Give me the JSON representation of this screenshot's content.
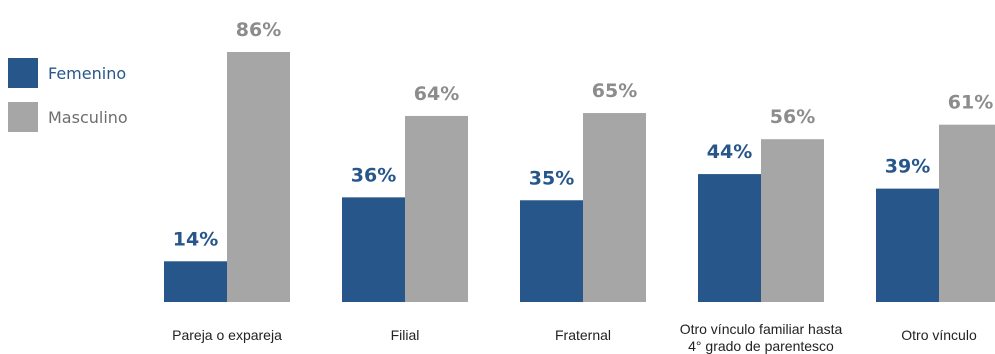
{
  "chart_data": {
    "type": "bar",
    "title": "",
    "xlabel": "",
    "ylabel": "",
    "ylim": [
      0,
      100
    ],
    "grid": false,
    "legend_position": "top-left",
    "categories": [
      [
        "Pareja o expareja"
      ],
      [
        "Filial"
      ],
      [
        "Fraternal"
      ],
      [
        "Otro vínculo familiar hasta",
        "4° grado de parentesco"
      ],
      [
        "Otro vínculo"
      ]
    ],
    "series": [
      {
        "name": "Femenino",
        "color": "#27568b",
        "values": [
          14,
          36,
          35,
          44,
          39
        ],
        "labels": [
          "14%",
          "36%",
          "35%",
          "44%",
          "39%"
        ]
      },
      {
        "name": "Masculino",
        "color": "#a6a6a6",
        "values": [
          86,
          64,
          65,
          56,
          61
        ],
        "labels": [
          "86%",
          "64%",
          "65%",
          "56%",
          "61%"
        ]
      }
    ]
  }
}
